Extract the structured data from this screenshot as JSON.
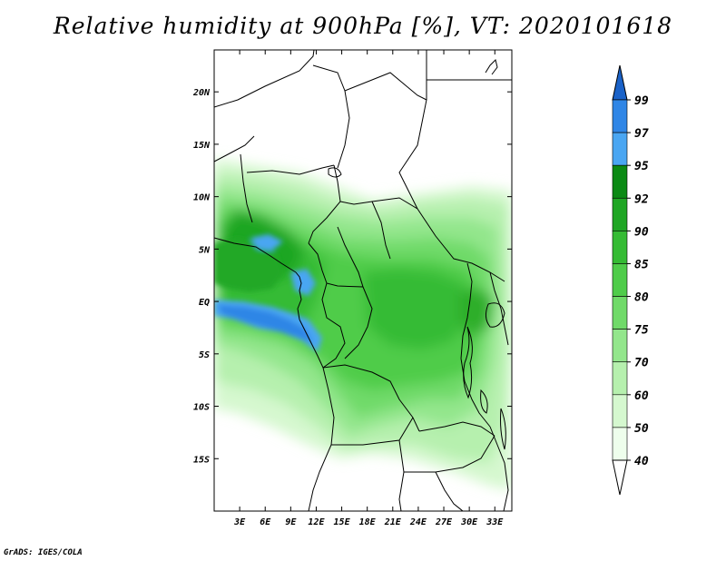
{
  "title": "Relative humidity at 900hPa [%], VT: 2020101618",
  "credit": "GrADS: IGES/COLA",
  "map": {
    "lon_range": [
      0,
      35
    ],
    "lat_range": [
      -20,
      24
    ],
    "lon_ticks": [
      "3E",
      "6E",
      "9E",
      "12E",
      "15E",
      "18E",
      "21E",
      "24E",
      "27E",
      "30E",
      "33E"
    ],
    "lon_tick_values": [
      3,
      6,
      9,
      12,
      15,
      18,
      21,
      24,
      27,
      30,
      33
    ],
    "lat_ticks": [
      "20N",
      "15N",
      "10N",
      "5N",
      "EQ",
      "5S",
      "10S",
      "15S"
    ],
    "lat_tick_values": [
      20,
      15,
      10,
      5,
      0,
      -5,
      -10,
      -15
    ]
  },
  "colorbar": {
    "levels": [
      "99",
      "97",
      "95",
      "92",
      "90",
      "85",
      "80",
      "75",
      "70",
      "60",
      "50",
      "40"
    ],
    "colors": [
      "#1a62c8",
      "#2f86e6",
      "#4aa6f2",
      "#0b8a14",
      "#1fa624",
      "#35bb34",
      "#4fcc4a",
      "#70da69",
      "#93e68c",
      "#b6f0ae",
      "#d5f8cf",
      "#eefeec"
    ]
  }
}
